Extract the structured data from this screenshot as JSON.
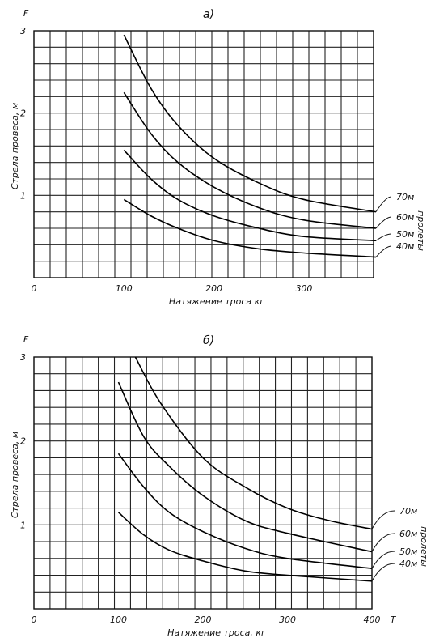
{
  "chart_data": [
    {
      "type": "line",
      "panel_label": "а)",
      "ylabel": "Стрела провеса, м",
      "xlabel": "Натяжение троса кг",
      "y_axis_letter": "F",
      "x_axis_letter": "",
      "series_group_label": "пролеты",
      "xlim": [
        0,
        380
      ],
      "ylim": [
        0,
        3
      ],
      "x_ticks": [
        "0",
        "100",
        "200",
        "300"
      ],
      "y_ticks": [
        "1",
        "2",
        "3"
      ],
      "grid": true,
      "series": [
        {
          "name": "70м",
          "x": [
            100,
            130,
            160,
            200,
            250,
            300,
            380
          ],
          "y": [
            2.95,
            2.3,
            1.85,
            1.45,
            1.15,
            0.95,
            0.8
          ]
        },
        {
          "name": "60м",
          "x": [
            100,
            130,
            160,
            200,
            250,
            300,
            380
          ],
          "y": [
            2.25,
            1.75,
            1.4,
            1.1,
            0.85,
            0.7,
            0.6
          ]
        },
        {
          "name": "50м",
          "x": [
            100,
            130,
            160,
            200,
            250,
            300,
            380
          ],
          "y": [
            1.55,
            1.2,
            0.95,
            0.75,
            0.6,
            0.5,
            0.45
          ]
        },
        {
          "name": "40м",
          "x": [
            100,
            130,
            160,
            200,
            250,
            300,
            380
          ],
          "y": [
            0.95,
            0.75,
            0.6,
            0.45,
            0.35,
            0.3,
            0.25
          ]
        }
      ]
    },
    {
      "type": "line",
      "panel_label": "б)",
      "ylabel": "Стрела провеса, м",
      "xlabel": "Натяжение троса, кг",
      "y_axis_letter": "F",
      "x_axis_letter": "T",
      "series_group_label": "пролеты",
      "xlim": [
        0,
        400
      ],
      "ylim": [
        0,
        3
      ],
      "x_ticks": [
        "0",
        "100",
        "200",
        "300",
        "400"
      ],
      "y_ticks": [
        "1",
        "2",
        "3"
      ],
      "grid": true,
      "series": [
        {
          "name": "70м",
          "x": [
            120,
            150,
            200,
            250,
            300,
            350,
            400
          ],
          "y": [
            3.0,
            2.45,
            1.8,
            1.45,
            1.2,
            1.05,
            0.95
          ]
        },
        {
          "name": "60м",
          "x": [
            100,
            130,
            160,
            200,
            250,
            300,
            400
          ],
          "y": [
            2.7,
            2.05,
            1.7,
            1.35,
            1.05,
            0.9,
            0.68
          ]
        },
        {
          "name": "50м",
          "x": [
            100,
            130,
            160,
            200,
            250,
            300,
            400
          ],
          "y": [
            1.85,
            1.45,
            1.15,
            0.92,
            0.72,
            0.6,
            0.48
          ]
        },
        {
          "name": "40м",
          "x": [
            100,
            130,
            160,
            200,
            250,
            300,
            400
          ],
          "y": [
            1.15,
            0.88,
            0.7,
            0.57,
            0.45,
            0.4,
            0.33
          ]
        }
      ]
    }
  ]
}
